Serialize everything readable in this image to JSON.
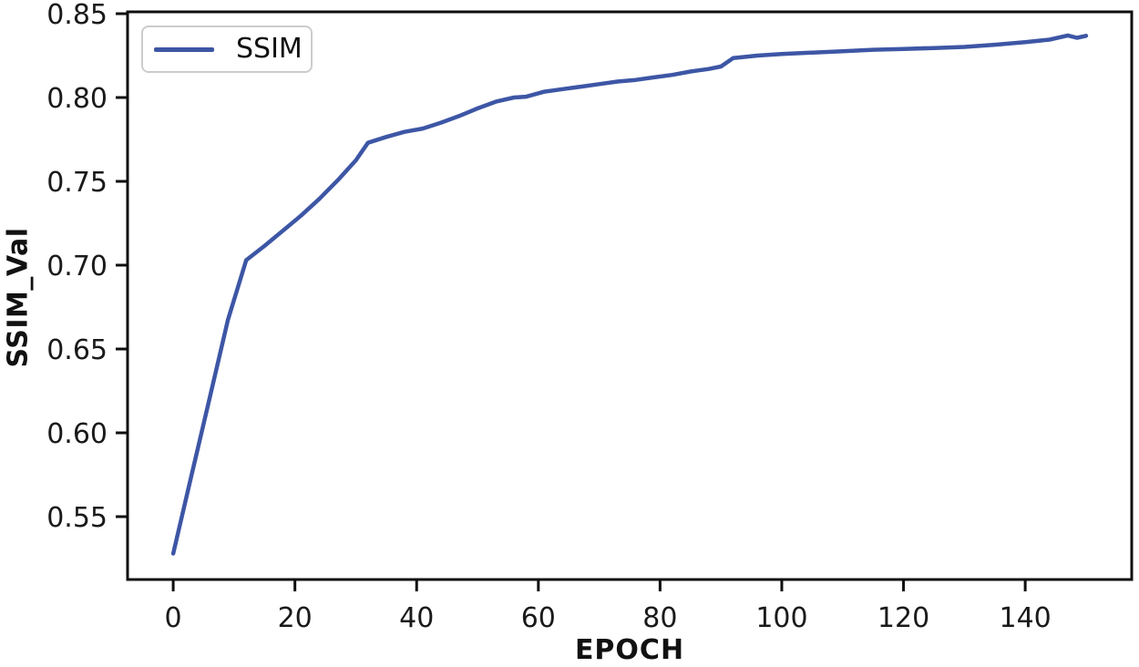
{
  "figure": {
    "background": "#ffffff",
    "axis_color": "#0f0f0f",
    "tick_label_color": "#1a1a1a"
  },
  "chart_data": {
    "type": "line",
    "title": "",
    "xlabel": "EPOCH",
    "ylabel": "SSIM_Val",
    "xlim": [
      -7.5,
      157.5
    ],
    "ylim": [
      0.5125,
      0.8511
    ],
    "xticks": [
      0,
      20,
      40,
      60,
      80,
      100,
      120,
      140
    ],
    "xtick_labels": [
      "0",
      "20",
      "40",
      "60",
      "80",
      "100",
      "120",
      "140"
    ],
    "yticks": [
      0.55,
      0.6,
      0.65,
      0.7,
      0.75,
      0.8,
      0.85
    ],
    "ytick_labels": [
      "0.55",
      "0.60",
      "0.65",
      "0.70",
      "0.75",
      "0.80",
      "0.85"
    ],
    "grid": false,
    "legend": {
      "position": "upper-left",
      "entries": [
        "SSIM"
      ]
    },
    "series": [
      {
        "name": "SSIM",
        "color": "#3d56a5",
        "line_width": 4.5,
        "x": [
          0,
          3,
          6,
          9,
          12,
          15,
          18,
          21,
          24,
          27,
          30,
          32,
          35,
          38,
          41,
          44,
          47,
          50,
          53,
          56,
          58,
          61,
          64,
          67,
          70,
          73,
          76,
          79,
          82,
          85,
          88,
          90,
          92,
          96,
          100,
          105,
          110,
          115,
          120,
          125,
          130,
          135,
          140,
          144,
          147,
          148.5,
          150
        ],
        "values": [
          0.528,
          0.5745,
          0.621,
          0.6675,
          0.703,
          0.7115,
          0.7205,
          0.7295,
          0.7395,
          0.7505,
          0.7625,
          0.773,
          0.7765,
          0.7795,
          0.7815,
          0.785,
          0.789,
          0.7935,
          0.7975,
          0.8,
          0.8005,
          0.8035,
          0.805,
          0.8065,
          0.808,
          0.8095,
          0.8105,
          0.812,
          0.8135,
          0.8155,
          0.817,
          0.8185,
          0.8235,
          0.825,
          0.826,
          0.8268,
          0.8276,
          0.8285,
          0.829,
          0.8295,
          0.8302,
          0.8315,
          0.833,
          0.8345,
          0.837,
          0.8356,
          0.8368
        ]
      }
    ]
  }
}
